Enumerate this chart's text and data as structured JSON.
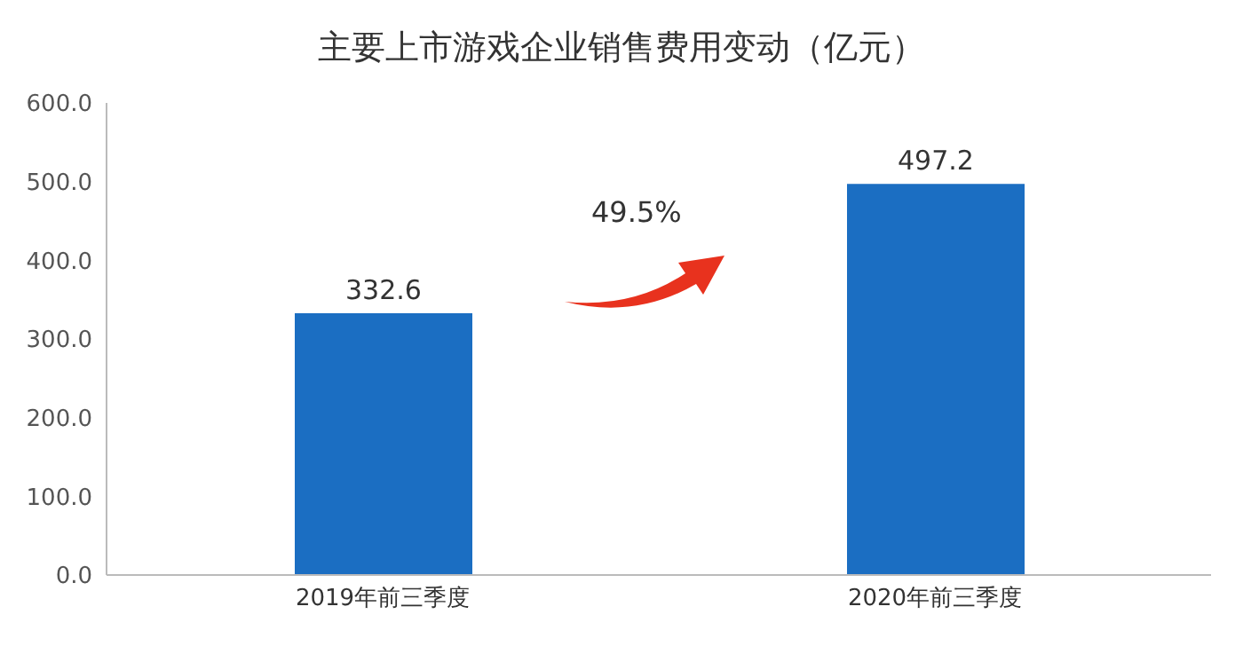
{
  "chart_data": {
    "type": "bar",
    "title": "主要上市游戏企业销售费用变动（亿元）",
    "categories": [
      "2019年前三季度",
      "2020年前三季度"
    ],
    "values": [
      332.6,
      497.2
    ],
    "color": "#1b6ec2",
    "ylim": [
      0,
      600
    ],
    "yticks": [
      {
        "value": 0,
        "label": "0.0"
      },
      {
        "value": 100,
        "label": "100.0"
      },
      {
        "value": 200,
        "label": "200.0"
      },
      {
        "value": 300,
        "label": "300.0"
      },
      {
        "value": 400,
        "label": "400.0"
      },
      {
        "value": 500,
        "label": "500.0"
      },
      {
        "value": 600,
        "label": "600.0"
      }
    ],
    "data_labels": true,
    "grid": false,
    "annotations": [
      "49.5%"
    ]
  }
}
